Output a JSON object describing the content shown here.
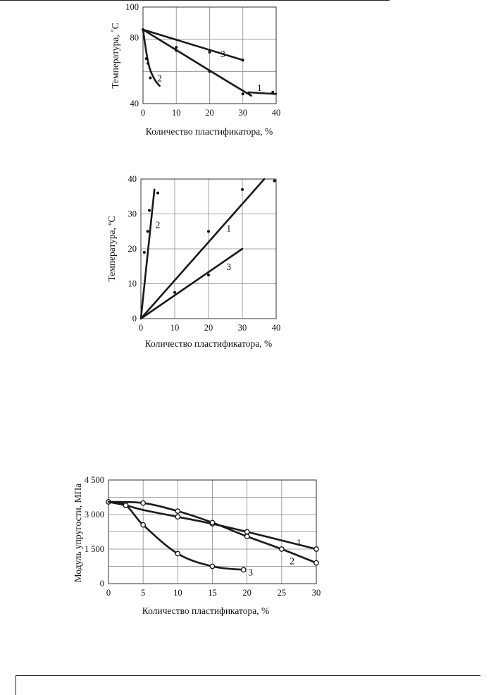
{
  "chart_data": [
    {
      "type": "line",
      "xlabel": "Количество пластификатора, %",
      "ylabel": "Температура, ˚С",
      "xlim": [
        0,
        40
      ],
      "ylim": [
        40,
        100
      ],
      "x_ticks": [
        "0",
        "10",
        "20",
        "30",
        "40"
      ],
      "y_ticks": [
        "40",
        "80",
        "100"
      ],
      "grid": true,
      "series": [
        {
          "name": "1",
          "line": [
            [
              0,
              86
            ],
            [
              30,
              48
            ],
            [
              32,
              47
            ],
            [
              40,
              46
            ]
          ],
          "points": [
            [
              0,
              86
            ],
            [
              10,
              73
            ],
            [
              20,
              60
            ],
            [
              30,
              46
            ],
            [
              39,
              47
            ]
          ],
          "label_at": [
            35,
            50
          ]
        },
        {
          "name": "2",
          "line": [
            [
              0,
              86
            ],
            [
              1,
              72
            ],
            [
              2,
              62
            ],
            [
              3.5,
              55
            ],
            [
              5,
              51
            ]
          ],
          "points": [
            [
              1,
              68
            ],
            [
              1.5,
              65
            ],
            [
              2.2,
              56
            ]
          ],
          "label_at": [
            5,
            56
          ]
        },
        {
          "name": "3",
          "line": [
            [
              0,
              86
            ],
            [
              30,
              67
            ]
          ],
          "points": [
            [
              10,
              75
            ],
            [
              20,
              72
            ],
            [
              30,
              67
            ]
          ],
          "label_at": [
            24,
            71
          ]
        }
      ]
    },
    {
      "type": "line",
      "xlabel": "Количество пластификатора, %",
      "ylabel": "Температура, ºС",
      "xlim": [
        0,
        40
      ],
      "ylim": [
        0,
        40
      ],
      "x_ticks": [
        "0",
        "10",
        "20",
        "30",
        "40"
      ],
      "y_ticks": [
        "0",
        "10",
        "20",
        "30",
        "40"
      ],
      "grid": true,
      "series": [
        {
          "name": "1",
          "line": [
            [
              0,
              0
            ],
            [
              36.5,
              40
            ]
          ],
          "points": [
            [
              20,
              25
            ],
            [
              30,
              37
            ],
            [
              39.5,
              39.5
            ]
          ],
          "label_at": [
            26,
            26
          ]
        },
        {
          "name": "2",
          "line": [
            [
              0,
              0
            ],
            [
              4,
              37
            ]
          ],
          "points": [
            [
              1,
              19
            ],
            [
              2,
              25
            ],
            [
              2.5,
              31
            ],
            [
              5,
              36
            ]
          ],
          "label_at": [
            5,
            27
          ]
        },
        {
          "name": "3",
          "line": [
            [
              0,
              0
            ],
            [
              30,
              20
            ]
          ],
          "points": [
            [
              10,
              7.5
            ],
            [
              20,
              12.5
            ]
          ],
          "label_at": [
            26,
            15
          ]
        }
      ]
    },
    {
      "type": "line",
      "xlabel": "Количество пластификатора, %",
      "ylabel": "Модуль упругости,  МПа",
      "xlim": [
        0,
        30
      ],
      "ylim": [
        0,
        4500
      ],
      "x_ticks": [
        "0",
        "5",
        "10",
        "15",
        "20",
        "25",
        "30"
      ],
      "y_ticks": [
        "0",
        "1 500",
        "3 000",
        "4 500"
      ],
      "y_tick_values": [
        0,
        1500,
        3000,
        4500
      ],
      "grid": true,
      "series": [
        {
          "name": "1",
          "line": [
            [
              0,
              3550
            ],
            [
              2.5,
              3400
            ],
            [
              5,
              3200
            ],
            [
              10,
              2900
            ],
            [
              15,
              2600
            ],
            [
              20,
              2250
            ],
            [
              30,
              1500
            ]
          ],
          "points": [
            [
              0,
              3550
            ],
            [
              2.5,
              3400
            ],
            [
              10,
              2900
            ],
            [
              15,
              2600
            ],
            [
              20,
              2250
            ],
            [
              30,
              1500
            ]
          ],
          "label_at": [
            27.5,
            1800
          ]
        },
        {
          "name": "2",
          "line": [
            [
              0,
              3550
            ],
            [
              5,
              3500
            ],
            [
              10,
              3150
            ],
            [
              15,
              2650
            ],
            [
              20,
              2050
            ],
            [
              25,
              1500
            ],
            [
              30,
              900
            ]
          ],
          "points": [
            [
              5,
              3500
            ],
            [
              10,
              3150
            ],
            [
              15,
              2650
            ],
            [
              20,
              2050
            ],
            [
              25,
              1500
            ],
            [
              30,
              900
            ]
          ],
          "label_at": [
            26.5,
            1000
          ]
        },
        {
          "name": "3",
          "line": [
            [
              0,
              3550
            ],
            [
              2.5,
              3400
            ],
            [
              5,
              2550
            ],
            [
              10,
              1300
            ],
            [
              15,
              750
            ],
            [
              19.5,
              600
            ]
          ],
          "points": [
            [
              2.5,
              3400
            ],
            [
              5,
              2550
            ],
            [
              10,
              1300
            ],
            [
              15,
              750
            ],
            [
              19.5,
              600
            ]
          ],
          "label_at": [
            20.5,
            500
          ]
        }
      ]
    }
  ]
}
